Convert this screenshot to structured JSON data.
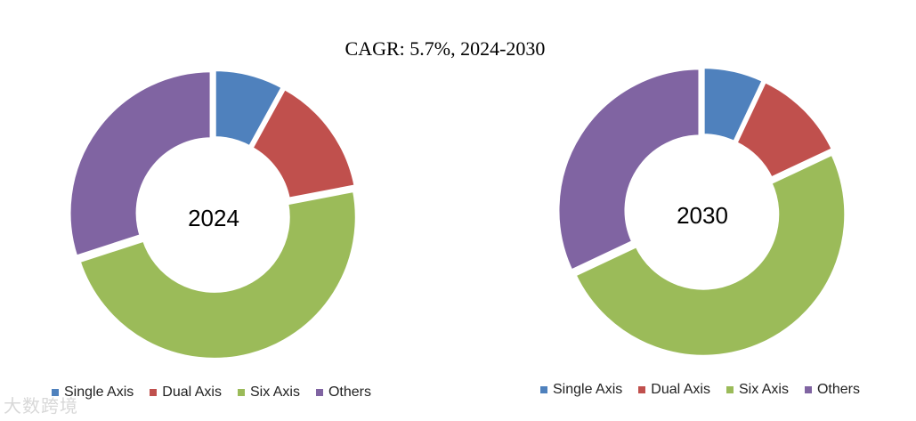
{
  "title": "CAGR:   5.7%, 2024-2030",
  "watermark": "大数跨境",
  "colors": {
    "Single Axis": "#4F81BD",
    "Dual Axis": "#C0504D",
    "Six Axis": "#9BBB59",
    "Others": "#8064A2"
  },
  "chart_data": [
    {
      "type": "pie",
      "center_label": "2024",
      "categories": [
        "Single Axis",
        "Dual Axis",
        "Six Axis",
        "Others"
      ],
      "values": [
        8,
        14,
        48,
        30
      ],
      "legend": "bottom"
    },
    {
      "type": "pie",
      "center_label": "2030",
      "categories": [
        "Single Axis",
        "Dual Axis",
        "Six Axis",
        "Others"
      ],
      "values": [
        7,
        11,
        50,
        32
      ],
      "legend": "bottom"
    }
  ]
}
